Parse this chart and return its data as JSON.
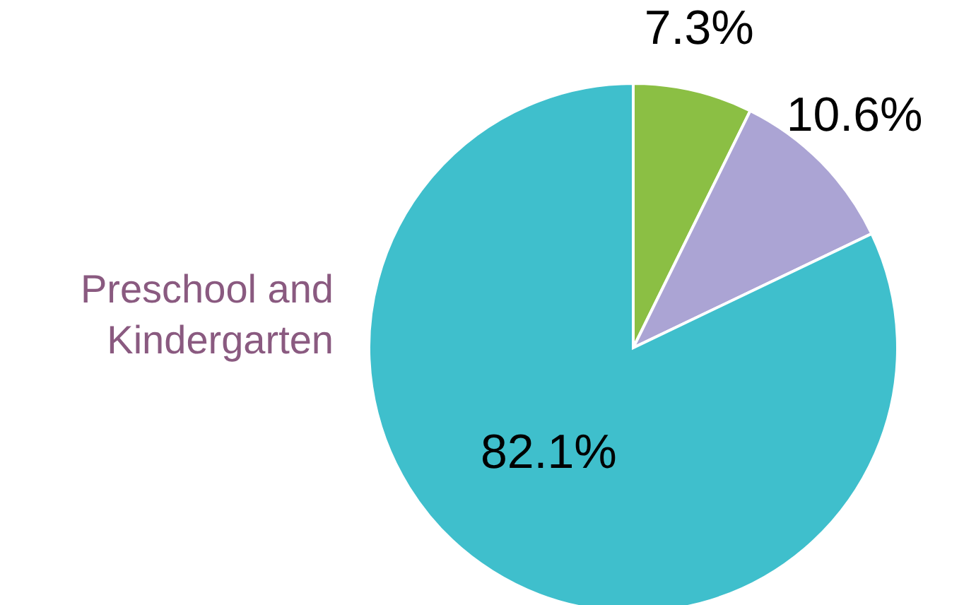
{
  "chart_data": {
    "type": "pie",
    "categories": [
      null,
      null,
      "Preschool and Kindergarten"
    ],
    "values": [
      7.3,
      10.6,
      82.1
    ],
    "value_labels": [
      "7.3%",
      "10.6%",
      "82.1%"
    ],
    "colors": [
      "#8bbf44",
      "#aba4d4",
      "#3fbfcc"
    ]
  }
}
